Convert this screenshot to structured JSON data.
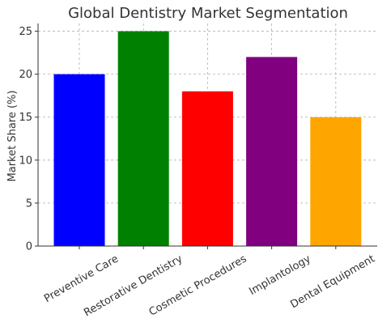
{
  "chart_data": {
    "type": "bar",
    "title": "Global Dentistry Market Segmentation",
    "xlabel": "",
    "ylabel": "Market Share (%)",
    "categories": [
      "Preventive Care",
      "Restorative Dentistry",
      "Cosmetic Procedures",
      "Implantology",
      "Dental Equipment"
    ],
    "values": [
      20,
      25,
      18,
      22,
      15
    ],
    "colors": [
      "#0000ff",
      "#008000",
      "#ff0000",
      "#800080",
      "#ffa500"
    ],
    "ylim": [
      0,
      25.9
    ],
    "yticks": [
      0,
      5,
      10,
      15,
      20,
      25
    ],
    "grid": true,
    "legend": "none"
  }
}
